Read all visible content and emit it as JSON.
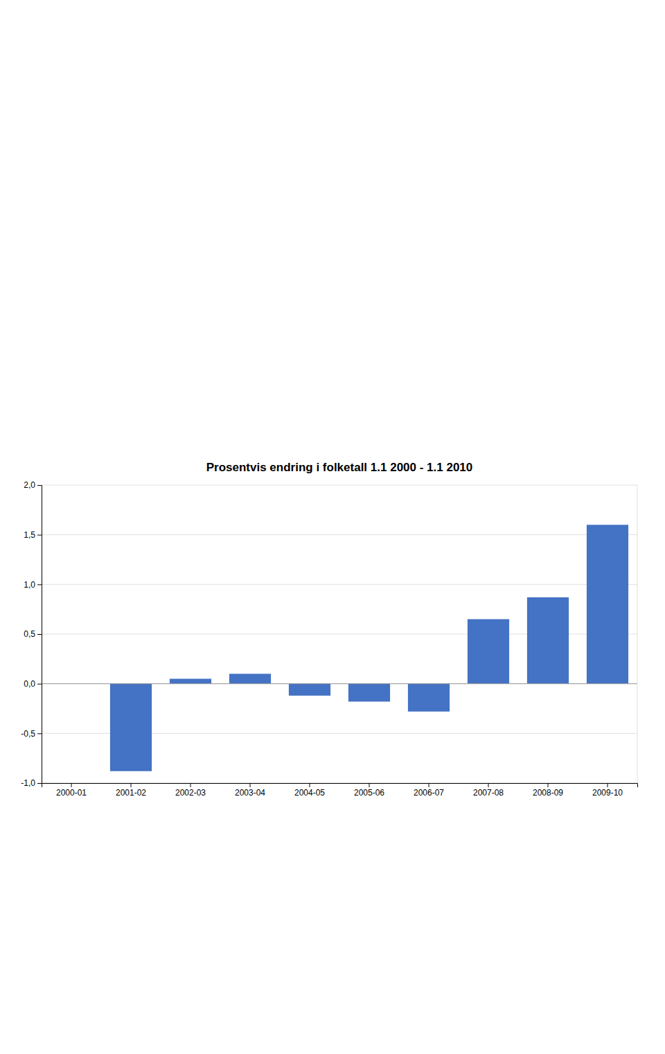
{
  "chart_data": {
    "type": "bar",
    "title": "Prosentvis endring i folketall 1.1 2000 - 1.1 2010",
    "categories": [
      "2000-01",
      "2001-02",
      "2002-03",
      "2003-04",
      "2004-05",
      "2005-06",
      "2006-07",
      "2007-08",
      "2008-09",
      "2009-10"
    ],
    "values": [
      0.0,
      -0.88,
      0.05,
      0.1,
      -0.12,
      -0.18,
      -0.28,
      0.65,
      0.87,
      1.6
    ],
    "color": "#4472C4",
    "ylim": [
      -1.0,
      2.0
    ],
    "yticks": [
      {
        "value": -1.0,
        "label": "-1,0"
      },
      {
        "value": -0.5,
        "label": "-0,5"
      },
      {
        "value": 0.0,
        "label": "0,0"
      },
      {
        "value": 0.5,
        "label": "0,5"
      },
      {
        "value": 1.0,
        "label": "1,0"
      },
      {
        "value": 1.5,
        "label": "1,5"
      },
      {
        "value": 2.0,
        "label": "2,0"
      }
    ],
    "grid": true
  }
}
